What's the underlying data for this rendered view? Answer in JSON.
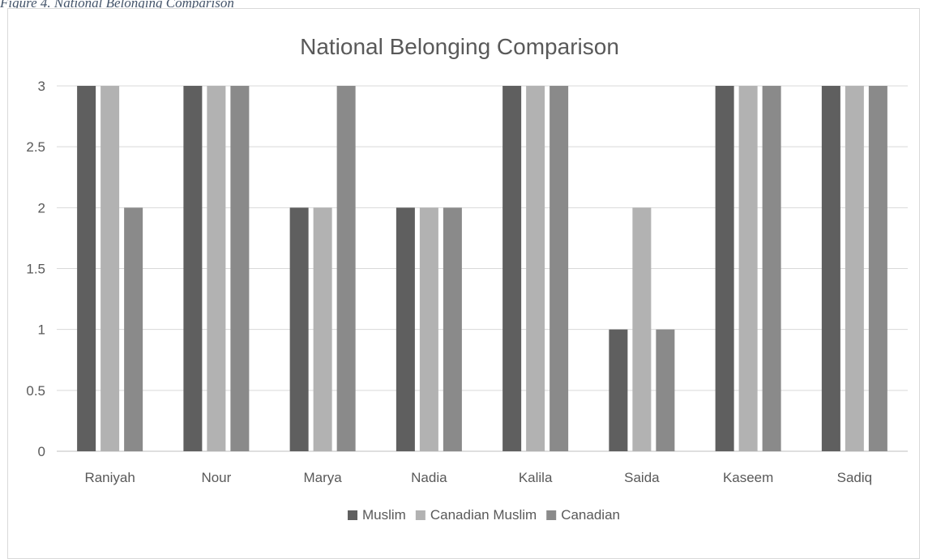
{
  "figure_caption": "Figure 4. National Belonging Comparison",
  "chart_data": {
    "type": "bar",
    "title": "National Belonging Comparison",
    "xlabel": "",
    "ylabel": "",
    "ylim": [
      0,
      3
    ],
    "yticks": [
      "0",
      "0.5",
      "1",
      "1.5",
      "2",
      "2.5",
      "3"
    ],
    "grid": true,
    "legend_position": "bottom",
    "categories": [
      "Raniyah",
      "Nour",
      "Marya",
      "Nadia",
      "Kalila",
      "Saida",
      "Kaseem",
      "Sadiq"
    ],
    "series": [
      {
        "name": "Muslim",
        "color": "#5f5f5f",
        "values": [
          3,
          3,
          2,
          2,
          3,
          1,
          3,
          3
        ]
      },
      {
        "name": "Canadian Muslim",
        "color": "#b2b2b2",
        "values": [
          3,
          3,
          2,
          2,
          3,
          2,
          3,
          3
        ]
      },
      {
        "name": "Canadian",
        "color": "#8a8a8a",
        "values": [
          2,
          3,
          3,
          2,
          3,
          1,
          3,
          3
        ]
      }
    ]
  }
}
